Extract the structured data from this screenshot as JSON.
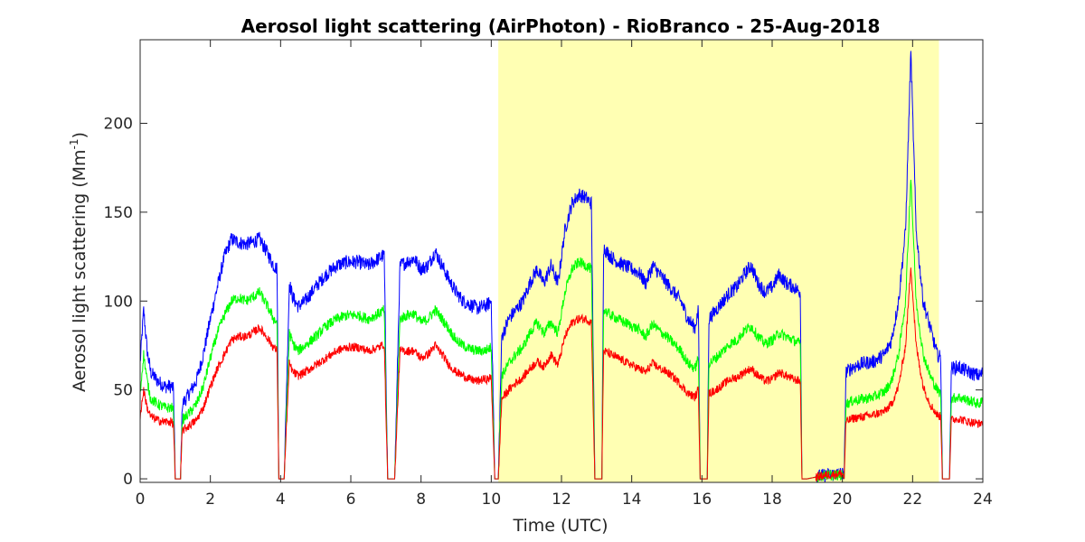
{
  "chart_data": {
    "type": "line",
    "title": "Aerosol light scattering (AirPhoton) - RioBranco - 25-Aug-2018",
    "xlabel": "Time (UTC)",
    "ylabel_main": "Aerosol light scattering (Mm",
    "ylabel_sup": "-1",
    "ylabel_close": ")",
    "xlim": [
      0,
      24
    ],
    "ylim": [
      -2,
      247
    ],
    "x_ticks": [
      0,
      2,
      4,
      6,
      8,
      10,
      12,
      14,
      16,
      18,
      20,
      22,
      24
    ],
    "x_tick_labels": [
      "0",
      "2",
      "4",
      "6",
      "8",
      "10",
      "12",
      "14",
      "16",
      "18",
      "20",
      "22",
      "24"
    ],
    "y_ticks": [
      0,
      50,
      100,
      150,
      200
    ],
    "y_tick_labels": [
      "0",
      "50",
      "100",
      "150",
      "200"
    ],
    "highlight": {
      "x_start": 10.2,
      "x_end": 22.75,
      "color": "#ffffb3"
    },
    "grid": false,
    "legend": "none",
    "series": [
      {
        "color": "#0000ff",
        "noise": 4,
        "x": [
          0,
          0.1,
          0.2,
          0.3,
          0.5,
          0.7,
          0.9,
          0.95,
          1.0,
          1.05,
          1.1,
          1.15,
          1.2,
          1.4,
          1.6,
          1.8,
          2.0,
          2.2,
          2.4,
          2.6,
          2.8,
          3.0,
          3.2,
          3.4,
          3.6,
          3.8,
          3.9,
          3.95,
          4.05,
          4.1,
          4.25,
          4.35,
          4.5,
          4.7,
          5.0,
          5.3,
          5.6,
          5.9,
          6.2,
          6.5,
          6.8,
          6.95,
          7.05,
          7.2,
          7.25,
          7.4,
          7.6,
          7.8,
          8.0,
          8.2,
          8.4,
          8.6,
          8.8,
          9.0,
          9.2,
          9.4,
          9.6,
          9.8,
          9.9,
          10.0,
          10.1,
          10.15,
          10.2,
          10.3,
          10.5,
          10.7,
          10.9,
          11.1,
          11.3,
          11.5,
          11.7,
          11.9,
          12.1,
          12.3,
          12.5,
          12.7,
          12.85,
          12.95,
          13.05,
          13.15,
          13.2,
          13.4,
          13.6,
          13.8,
          14.0,
          14.2,
          14.4,
          14.6,
          14.8,
          15.0,
          15.2,
          15.4,
          15.6,
          15.8,
          15.9,
          15.95,
          16.05,
          16.15,
          16.2,
          16.4,
          16.6,
          16.8,
          17.0,
          17.2,
          17.4,
          17.6,
          17.8,
          18.0,
          18.2,
          18.4,
          18.6,
          18.8,
          18.85,
          18.95,
          19.0,
          19.5,
          20.0,
          20.05,
          20.1,
          20.3,
          20.6,
          20.9,
          21.2,
          21.4,
          21.6,
          21.8,
          21.95,
          22.1,
          22.3,
          22.5,
          22.7,
          22.8,
          22.85,
          23.0,
          23.05,
          23.1,
          23.3,
          23.6,
          23.9,
          24.0
        ],
        "y": [
          65,
          95,
          72,
          60,
          55,
          52,
          52,
          50,
          0,
          0,
          0,
          0,
          42,
          48,
          55,
          70,
          90,
          108,
          125,
          135,
          133,
          132,
          133,
          135,
          128,
          120,
          118,
          0,
          0,
          0,
          110,
          102,
          97,
          100,
          108,
          115,
          120,
          122,
          122,
          120,
          124,
          126,
          0,
          0,
          0,
          120,
          122,
          124,
          118,
          120,
          128,
          120,
          112,
          105,
          100,
          98,
          96,
          97,
          98,
          100,
          0,
          0,
          0,
          80,
          90,
          95,
          100,
          110,
          118,
          110,
          120,
          110,
          140,
          155,
          160,
          158,
          155,
          0,
          0,
          0,
          130,
          125,
          122,
          120,
          118,
          116,
          110,
          120,
          115,
          110,
          105,
          100,
          90,
          85,
          95,
          0,
          0,
          0,
          90,
          95,
          100,
          105,
          108,
          115,
          120,
          110,
          105,
          108,
          115,
          110,
          108,
          105,
          0,
          0,
          0,
          2,
          3,
          0,
          60,
          63,
          65,
          66,
          70,
          78,
          100,
          140,
          240,
          140,
          100,
          85,
          70,
          68,
          0,
          0,
          0,
          62,
          63,
          60,
          58,
          60
        ]
      },
      {
        "color": "#00ff00",
        "noise": 3,
        "x": [
          0,
          0.1,
          0.2,
          0.3,
          0.5,
          0.7,
          0.9,
          0.95,
          1.0,
          1.05,
          1.1,
          1.15,
          1.2,
          1.4,
          1.6,
          1.8,
          2.0,
          2.2,
          2.4,
          2.6,
          2.8,
          3.0,
          3.2,
          3.4,
          3.6,
          3.8,
          3.9,
          3.95,
          4.05,
          4.1,
          4.25,
          4.35,
          4.5,
          4.7,
          5.0,
          5.3,
          5.6,
          5.9,
          6.2,
          6.5,
          6.8,
          6.95,
          7.05,
          7.2,
          7.25,
          7.4,
          7.6,
          7.8,
          8.0,
          8.2,
          8.4,
          8.6,
          8.8,
          9.0,
          9.2,
          9.4,
          9.6,
          9.8,
          9.9,
          10.0,
          10.1,
          10.15,
          10.2,
          10.3,
          10.5,
          10.7,
          10.9,
          11.1,
          11.3,
          11.5,
          11.7,
          11.9,
          12.1,
          12.3,
          12.5,
          12.7,
          12.85,
          12.95,
          13.05,
          13.15,
          13.2,
          13.4,
          13.6,
          13.8,
          14.0,
          14.2,
          14.4,
          14.6,
          14.8,
          15.0,
          15.2,
          15.4,
          15.6,
          15.8,
          15.9,
          15.95,
          16.05,
          16.15,
          16.2,
          16.4,
          16.6,
          16.8,
          17.0,
          17.2,
          17.4,
          17.6,
          17.8,
          18.0,
          18.2,
          18.4,
          18.6,
          18.8,
          18.85,
          18.95,
          19.0,
          19.5,
          20.0,
          20.05,
          20.1,
          20.3,
          20.6,
          20.9,
          21.2,
          21.4,
          21.6,
          21.8,
          21.95,
          22.1,
          22.3,
          22.5,
          22.7,
          22.8,
          22.85,
          23.0,
          23.05,
          23.1,
          23.3,
          23.6,
          23.9,
          24.0
        ],
        "y": [
          48,
          70,
          55,
          45,
          42,
          40,
          40,
          38,
          0,
          0,
          0,
          0,
          33,
          37,
          42,
          52,
          68,
          82,
          92,
          100,
          102,
          100,
          102,
          105,
          98,
          90,
          88,
          0,
          0,
          0,
          82,
          76,
          72,
          75,
          80,
          86,
          90,
          92,
          92,
          90,
          93,
          95,
          0,
          0,
          0,
          90,
          92,
          93,
          88,
          90,
          95,
          90,
          84,
          78,
          75,
          73,
          72,
          72,
          73,
          74,
          0,
          0,
          0,
          58,
          65,
          70,
          74,
          82,
          88,
          82,
          88,
          82,
          105,
          118,
          122,
          120,
          118,
          0,
          0,
          0,
          95,
          92,
          90,
          88,
          86,
          84,
          80,
          87,
          83,
          80,
          76,
          72,
          65,
          62,
          68,
          0,
          0,
          0,
          65,
          68,
          72,
          76,
          78,
          83,
          86,
          80,
          76,
          78,
          82,
          80,
          78,
          76,
          0,
          0,
          0,
          2,
          2,
          0,
          42,
          44,
          45,
          46,
          49,
          55,
          70,
          100,
          170,
          100,
          70,
          58,
          50,
          48,
          0,
          0,
          0,
          45,
          46,
          44,
          42,
          44
        ]
      },
      {
        "color": "#ff0000",
        "noise": 2.5,
        "x": [
          0,
          0.1,
          0.2,
          0.3,
          0.5,
          0.7,
          0.9,
          0.95,
          1.0,
          1.05,
          1.1,
          1.15,
          1.2,
          1.4,
          1.6,
          1.8,
          2.0,
          2.2,
          2.4,
          2.6,
          2.8,
          3.0,
          3.2,
          3.4,
          3.6,
          3.8,
          3.9,
          3.95,
          4.05,
          4.1,
          4.25,
          4.35,
          4.5,
          4.7,
          5.0,
          5.3,
          5.6,
          5.9,
          6.2,
          6.5,
          6.8,
          6.95,
          7.05,
          7.2,
          7.25,
          7.4,
          7.6,
          7.8,
          8.0,
          8.2,
          8.4,
          8.6,
          8.8,
          9.0,
          9.2,
          9.4,
          9.6,
          9.8,
          9.9,
          10.0,
          10.1,
          10.15,
          10.2,
          10.3,
          10.5,
          10.7,
          10.9,
          11.1,
          11.3,
          11.5,
          11.7,
          11.9,
          12.1,
          12.3,
          12.5,
          12.7,
          12.85,
          12.95,
          13.05,
          13.15,
          13.2,
          13.4,
          13.6,
          13.8,
          14.0,
          14.2,
          14.4,
          14.6,
          14.8,
          15.0,
          15.2,
          15.4,
          15.6,
          15.8,
          15.9,
          15.95,
          16.05,
          16.15,
          16.2,
          16.4,
          16.6,
          16.8,
          17.0,
          17.2,
          17.4,
          17.6,
          17.8,
          18.0,
          18.2,
          18.4,
          18.6,
          18.8,
          18.85,
          18.95,
          19.0,
          19.5,
          20.0,
          20.05,
          20.1,
          20.3,
          20.6,
          20.9,
          21.2,
          21.4,
          21.6,
          21.8,
          21.95,
          22.1,
          22.3,
          22.5,
          22.7,
          22.8,
          22.85,
          23.0,
          23.05,
          23.1,
          23.3,
          23.6,
          23.9,
          24.0
        ],
        "y": [
          35,
          50,
          40,
          35,
          33,
          32,
          32,
          30,
          0,
          0,
          0,
          0,
          27,
          30,
          33,
          40,
          52,
          62,
          70,
          78,
          80,
          80,
          82,
          85,
          80,
          74,
          72,
          0,
          0,
          0,
          65,
          60,
          58,
          60,
          64,
          68,
          72,
          74,
          74,
          72,
          74,
          76,
          0,
          0,
          0,
          72,
          72,
          72,
          68,
          70,
          75,
          70,
          64,
          60,
          58,
          56,
          55,
          56,
          56,
          57,
          0,
          0,
          0,
          45,
          50,
          54,
          57,
          62,
          66,
          63,
          70,
          64,
          80,
          88,
          90,
          90,
          88,
          0,
          0,
          0,
          72,
          70,
          68,
          66,
          64,
          62,
          60,
          65,
          62,
          60,
          57,
          53,
          48,
          46,
          50,
          0,
          0,
          0,
          48,
          50,
          53,
          56,
          57,
          60,
          62,
          58,
          55,
          56,
          60,
          58,
          56,
          55,
          0,
          0,
          0,
          2,
          3,
          0,
          32,
          34,
          35,
          36,
          38,
          42,
          52,
          75,
          120,
          75,
          52,
          42,
          36,
          35,
          0,
          0,
          0,
          33,
          34,
          32,
          31,
          32
        ]
      }
    ]
  }
}
